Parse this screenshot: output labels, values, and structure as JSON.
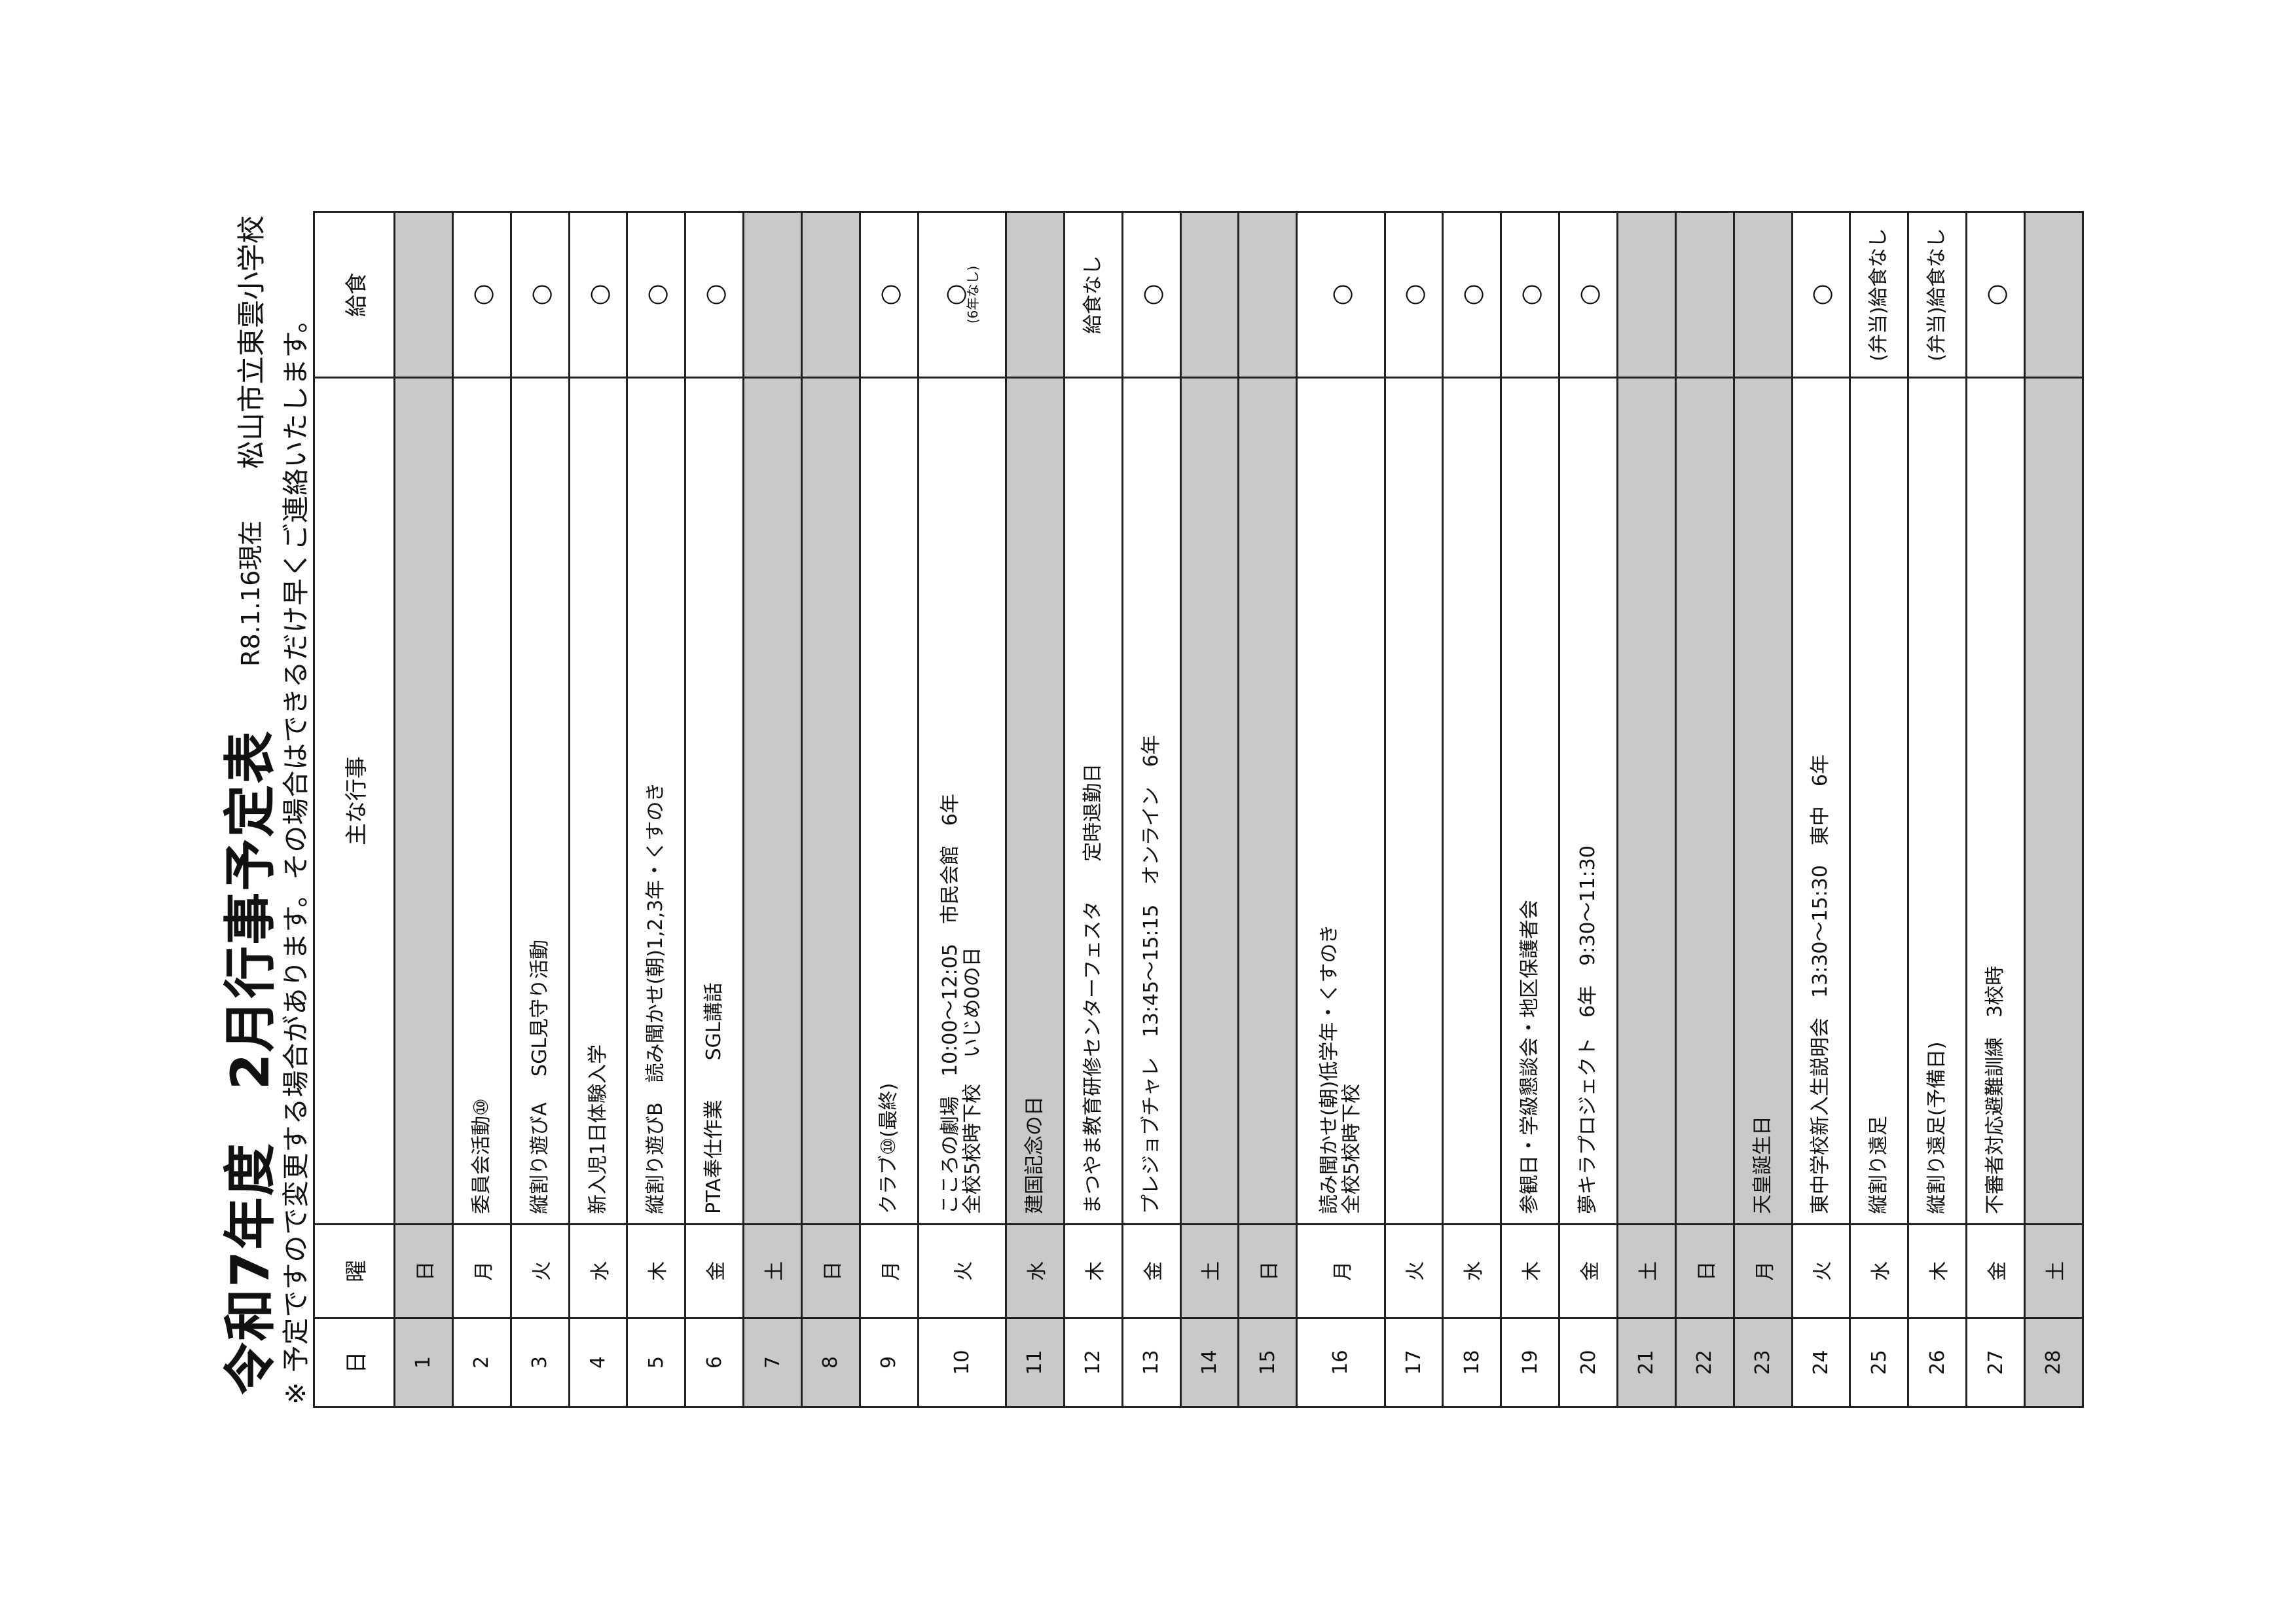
{
  "header": {
    "title_year": "令和7年度",
    "title_main": "2月行事予定表",
    "as_of": "R8.1.16現在",
    "school": "松山市立東雲小学校",
    "note": "※ 予定ですので変更する場合があります。その場合はできるだけ早くご連絡いたします。"
  },
  "table": {
    "columns": [
      "日",
      "曜",
      "主な行事",
      "給食"
    ],
    "shade_color": "#c9c9c9",
    "rows": [
      {
        "day": "1",
        "wd": "日",
        "events": [],
        "lunch": "",
        "shaded": true
      },
      {
        "day": "2",
        "wd": "月",
        "events": [
          "委員会活動⑩"
        ],
        "lunch": "○",
        "shaded": false
      },
      {
        "day": "3",
        "wd": "火",
        "events": [
          "縦割り遊びA　 SGL見守り活動"
        ],
        "lunch": "○",
        "shaded": false
      },
      {
        "day": "4",
        "wd": "水",
        "events": [
          "新入児1日体験入学"
        ],
        "lunch": "○",
        "shaded": false
      },
      {
        "day": "5",
        "wd": "木",
        "events": [
          "縦割り遊びB　読み聞かせ(朝)1,2,3年・くすのき"
        ],
        "lunch": "○",
        "shaded": false
      },
      {
        "day": "6",
        "wd": "金",
        "events": [
          "PTA奉仕作業　　SGL講話"
        ],
        "lunch": "○",
        "shaded": false
      },
      {
        "day": "7",
        "wd": "土",
        "events": [],
        "lunch": "",
        "shaded": true
      },
      {
        "day": "8",
        "wd": "日",
        "events": [],
        "lunch": "",
        "shaded": true
      },
      {
        "day": "9",
        "wd": "月",
        "events": [
          "クラブ⑩(最終)"
        ],
        "lunch": "○",
        "shaded": false
      },
      {
        "day": "10",
        "wd": "火",
        "events": [
          "こころの劇場　10:00～12:05　市民会館　6年",
          "全校5校時下校　 いじめ0の日"
        ],
        "lunch": "○",
        "lunch_note": "(6年なし)",
        "shaded": false
      },
      {
        "day": "11",
        "wd": "水",
        "events": [
          "建国記念の日"
        ],
        "lunch": "",
        "shaded": true
      },
      {
        "day": "12",
        "wd": "木",
        "events": [
          "まつやま教育研修センターフェスタ　　定時退勤日"
        ],
        "lunch": "給食なし",
        "shaded": false
      },
      {
        "day": "13",
        "wd": "金",
        "events": [
          "プレジョブチャレ　13:45～15:15　オンライン　6年"
        ],
        "lunch": "○",
        "shaded": false
      },
      {
        "day": "14",
        "wd": "土",
        "events": [],
        "lunch": "",
        "shaded": true
      },
      {
        "day": "15",
        "wd": "日",
        "events": [],
        "lunch": "",
        "shaded": true
      },
      {
        "day": "16",
        "wd": "月",
        "events": [
          "読み聞かせ(朝)低学年・くすのき",
          "全校5校時下校"
        ],
        "lunch": "○",
        "shaded": false
      },
      {
        "day": "17",
        "wd": "火",
        "events": [],
        "lunch": "○",
        "shaded": false
      },
      {
        "day": "18",
        "wd": "水",
        "events": [],
        "lunch": "○",
        "shaded": false
      },
      {
        "day": "19",
        "wd": "木",
        "events": [
          "参観日・学級懇談会・地区保護者会"
        ],
        "lunch": "○",
        "shaded": false
      },
      {
        "day": "20",
        "wd": "金",
        "events": [
          "夢キラプロジェクト　6年　9:30～11:30"
        ],
        "lunch": "○",
        "shaded": false
      },
      {
        "day": "21",
        "wd": "土",
        "events": [],
        "lunch": "",
        "shaded": true
      },
      {
        "day": "22",
        "wd": "日",
        "events": [],
        "lunch": "",
        "shaded": true
      },
      {
        "day": "23",
        "wd": "月",
        "events": [
          "天皇誕生日"
        ],
        "lunch": "",
        "shaded": true
      },
      {
        "day": "24",
        "wd": "火",
        "events": [
          "東中学校新入生説明会　13:30～15:30　東中　6年"
        ],
        "lunch": "○",
        "shaded": false
      },
      {
        "day": "25",
        "wd": "水",
        "events": [
          "縦割り遠足"
        ],
        "lunch": "(弁当)給食なし",
        "shaded": false
      },
      {
        "day": "26",
        "wd": "木",
        "events": [
          "縦割り遠足(予備日)"
        ],
        "lunch": "(弁当)給食なし",
        "shaded": false
      },
      {
        "day": "27",
        "wd": "金",
        "events": [
          "不審者対応避難訓練　3校時"
        ],
        "lunch": "○",
        "shaded": false
      },
      {
        "day": "28",
        "wd": "土",
        "events": [],
        "lunch": "",
        "shaded": true
      }
    ]
  }
}
